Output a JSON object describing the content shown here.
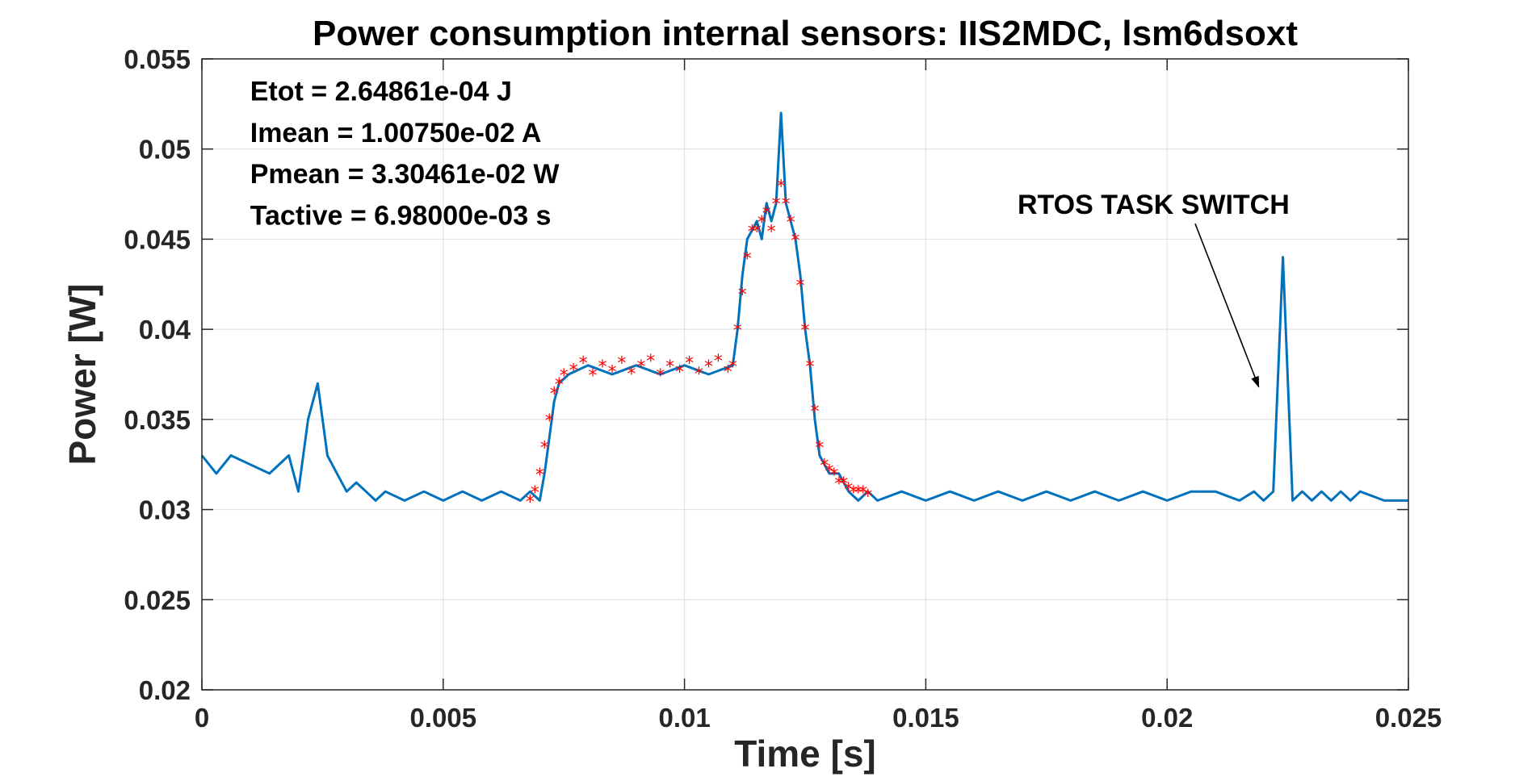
{
  "chart_data": {
    "type": "line",
    "title": "Power consumption internal sensors: IIS2MDC, lsm6dsoxt",
    "xlabel": "Time [s]",
    "ylabel": "Power [W]",
    "xlim": [
      0,
      0.025
    ],
    "ylim": [
      0.02,
      0.055
    ],
    "x_ticks": [
      0,
      0.005,
      0.01,
      0.015,
      0.02,
      0.025
    ],
    "x_tick_labels": [
      "0",
      "0.005",
      "0.01",
      "0.015",
      "0.02",
      "0.025"
    ],
    "y_ticks": [
      0.02,
      0.025,
      0.03,
      0.035,
      0.04,
      0.045,
      0.05,
      0.055
    ],
    "y_tick_labels": [
      "0.02",
      "0.025",
      "0.03",
      "0.035",
      "0.04",
      "0.045",
      "0.05",
      "0.055"
    ],
    "grid": true,
    "legend": "none",
    "series": [
      {
        "color": "#0072BD",
        "style": "line",
        "x": [
          0,
          0.0003,
          0.0006,
          0.001,
          0.0014,
          0.0018,
          0.002,
          0.0022,
          0.0024,
          0.0026,
          0.0028,
          0.003,
          0.0032,
          0.0034,
          0.0036,
          0.0038,
          0.0042,
          0.0046,
          0.005,
          0.0054,
          0.0058,
          0.0062,
          0.0066,
          0.0068,
          0.007,
          0.0071,
          0.0072,
          0.0073,
          0.0074,
          0.0076,
          0.008,
          0.0085,
          0.009,
          0.0095,
          0.01,
          0.0105,
          0.011,
          0.0111,
          0.0112,
          0.0113,
          0.0114,
          0.0115,
          0.0116,
          0.0117,
          0.0118,
          0.0119,
          0.012,
          0.0121,
          0.0122,
          0.0123,
          0.0124,
          0.0125,
          0.0126,
          0.0127,
          0.0128,
          0.013,
          0.0132,
          0.0134,
          0.0136,
          0.0138,
          0.014,
          0.0145,
          0.015,
          0.0155,
          0.016,
          0.0165,
          0.017,
          0.0175,
          0.018,
          0.0185,
          0.019,
          0.0195,
          0.02,
          0.0205,
          0.021,
          0.0215,
          0.0218,
          0.022,
          0.0222,
          0.0224,
          0.0226,
          0.0228,
          0.023,
          0.0232,
          0.0234,
          0.0236,
          0.0238,
          0.024,
          0.0245,
          0.025
        ],
        "y": [
          0.033,
          0.032,
          0.033,
          0.0325,
          0.032,
          0.033,
          0.031,
          0.035,
          0.037,
          0.033,
          0.032,
          0.031,
          0.0315,
          0.031,
          0.0305,
          0.031,
          0.0305,
          0.031,
          0.0305,
          0.031,
          0.0305,
          0.031,
          0.0305,
          0.031,
          0.0305,
          0.032,
          0.034,
          0.036,
          0.037,
          0.0375,
          0.038,
          0.0375,
          0.038,
          0.0375,
          0.038,
          0.0375,
          0.038,
          0.04,
          0.043,
          0.045,
          0.0455,
          0.046,
          0.045,
          0.047,
          0.046,
          0.047,
          0.052,
          0.047,
          0.046,
          0.045,
          0.043,
          0.04,
          0.038,
          0.035,
          0.033,
          0.032,
          0.032,
          0.031,
          0.0305,
          0.031,
          0.0305,
          0.031,
          0.0305,
          0.031,
          0.0305,
          0.031,
          0.0305,
          0.031,
          0.0305,
          0.031,
          0.0305,
          0.031,
          0.0305,
          0.031,
          0.031,
          0.0305,
          0.031,
          0.0305,
          0.031,
          0.044,
          0.0305,
          0.031,
          0.0305,
          0.031,
          0.0305,
          0.031,
          0.0305,
          0.031,
          0.0305,
          0.0305
        ]
      },
      {
        "color": "#FF0000",
        "style": "markers",
        "marker": "*",
        "x": [
          0.0068,
          0.0069,
          0.007,
          0.0071,
          0.0072,
          0.0073,
          0.0074,
          0.0075,
          0.0077,
          0.0079,
          0.0081,
          0.0083,
          0.0085,
          0.0087,
          0.0089,
          0.0091,
          0.0093,
          0.0095,
          0.0097,
          0.0099,
          0.0101,
          0.0103,
          0.0105,
          0.0107,
          0.0109,
          0.011,
          0.0111,
          0.0112,
          0.0113,
          0.0114,
          0.0115,
          0.0116,
          0.0117,
          0.0118,
          0.0119,
          0.012,
          0.0121,
          0.0122,
          0.0123,
          0.0124,
          0.0125,
          0.0126,
          0.0127,
          0.0128,
          0.0129,
          0.013,
          0.0131,
          0.0132,
          0.0133,
          0.0134,
          0.0135,
          0.0136,
          0.0137,
          0.0138
        ],
        "y": [
          0.0305,
          0.031,
          0.032,
          0.0335,
          0.035,
          0.0365,
          0.037,
          0.0375,
          0.0378,
          0.0382,
          0.0375,
          0.038,
          0.0377,
          0.0382,
          0.0376,
          0.038,
          0.0383,
          0.0375,
          0.038,
          0.0377,
          0.0382,
          0.0376,
          0.038,
          0.0383,
          0.0377,
          0.038,
          0.04,
          0.042,
          0.044,
          0.0455,
          0.0455,
          0.046,
          0.0465,
          0.0455,
          0.047,
          0.048,
          0.047,
          0.046,
          0.045,
          0.0425,
          0.04,
          0.038,
          0.0355,
          0.0335,
          0.0325,
          0.0322,
          0.032,
          0.0315,
          0.0315,
          0.0312,
          0.031,
          0.031,
          0.031,
          0.0308
        ]
      }
    ],
    "annotations": [
      {
        "text": "Etot = 2.64861e-04 J",
        "x": 0.001,
        "y": 0.0527
      },
      {
        "text": "Imean = 1.00750e-02 A",
        "x": 0.001,
        "y": 0.0504
      },
      {
        "text": "Pmean = 3.30461e-02 W",
        "x": 0.001,
        "y": 0.0481
      },
      {
        "text": "Tactive = 6.98000e-03 s",
        "x": 0.001,
        "y": 0.0458
      },
      {
        "text": "RTOS TASK SWITCH",
        "x": 0.0169,
        "y": 0.0464,
        "arrow_to": [
          0.0219,
          0.0368
        ]
      }
    ]
  }
}
